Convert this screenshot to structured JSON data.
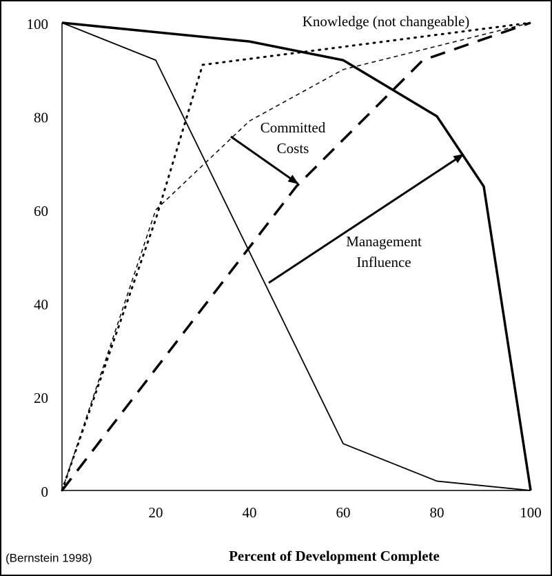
{
  "chart_data": {
    "type": "line",
    "xlabel": "Percent of Development Complete",
    "source": "(Bernstein 1998)",
    "xlim": [
      0,
      100
    ],
    "ylim": [
      0,
      100
    ],
    "xticks": [
      20,
      40,
      60,
      80,
      100
    ],
    "yticks": [
      0,
      20,
      40,
      60,
      80,
      100
    ],
    "series": [
      {
        "color": "#000000",
        "style": "solid",
        "width": 3.5,
        "x": [
          0,
          40,
          60,
          80,
          90,
          100
        ],
        "values": [
          100,
          96,
          92,
          80,
          65,
          0
        ]
      },
      {
        "color": "#000000",
        "style": "solid",
        "width": 1.8,
        "x": [
          0,
          20,
          60,
          80,
          100
        ],
        "values": [
          100,
          92,
          10,
          2,
          0
        ]
      },
      {
        "color": "#000000",
        "style": "dotted",
        "width": 3,
        "x": [
          0,
          20,
          30,
          100
        ],
        "values": [
          0,
          58,
          91,
          100
        ]
      },
      {
        "color": "#000000",
        "style": "dashed",
        "width": 1.5,
        "x": [
          0,
          20,
          40,
          60,
          100
        ],
        "values": [
          0,
          60,
          79,
          90,
          100
        ]
      },
      {
        "color": "#000000",
        "style": "bigdash",
        "width": 3.5,
        "x": [
          0,
          50,
          77,
          100
        ],
        "values": [
          0,
          65,
          92,
          100
        ]
      }
    ],
    "annotations": [
      {
        "lines": [
          "Knowledge (not changeable)"
        ]
      },
      {
        "lines": [
          "Committed",
          "Costs"
        ]
      },
      {
        "lines": [
          "Management",
          "Influence"
        ]
      }
    ]
  }
}
